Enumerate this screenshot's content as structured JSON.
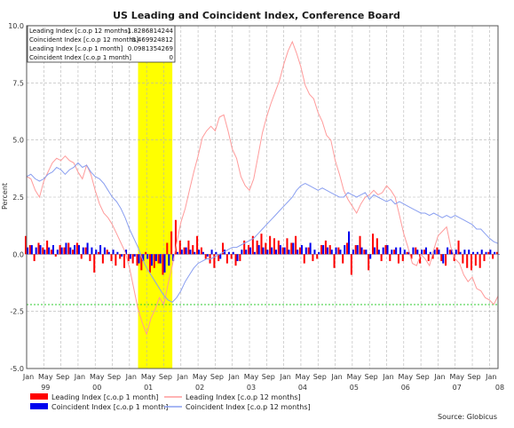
{
  "chart_data": {
    "type": "bar",
    "title": "US Leading and Coincident Index, Conference Board",
    "ylabel": "Percent",
    "ylim": [
      -5.0,
      10.0
    ],
    "ytick_labels": [
      "10.0",
      "7.5",
      "5.0",
      "2.5",
      "0.0",
      "-2.5",
      "-5.0"
    ],
    "x_month_labels": [
      "Jan",
      "May",
      "Sep",
      "Jan",
      "May",
      "Sep",
      "Jan",
      "May",
      "Sep",
      "Jan",
      "May",
      "Sep",
      "Jan",
      "May",
      "Sep",
      "Jan",
      "May",
      "Sep",
      "Jan",
      "May",
      "Sep",
      "Jan",
      "May",
      "Sep",
      "Jan",
      "May",
      "Sep",
      "Jan",
      "May",
      "Sep",
      "Jan"
    ],
    "x_year_labels": [
      "99",
      "00",
      "01",
      "02",
      "03",
      "04",
      "05",
      "06",
      "07",
      "08"
    ],
    "x_start": "1999-01",
    "x_end": "2008-03",
    "recession": {
      "start": "2001-03",
      "end": "2001-11",
      "color": "#ffff00"
    },
    "reference_line": {
      "value": -2.2,
      "color": "#33cc33"
    },
    "grid": true,
    "info_box": {
      "rows": [
        {
          "label": "Leading Index [c.o.p 12 months]",
          "value": "-1.8286814244"
        },
        {
          "label": "Coincident Index [c.o.p 12 months]",
          "value": "0.469924812"
        },
        {
          "label": "Leading Index [c.o.p 1 month]",
          "value": "0.0981354269"
        },
        {
          "label": "Coincident Index [c.o.p 1 month]",
          "value": "0"
        }
      ]
    },
    "series": [
      {
        "name": "Leading Index [c.o.p 1 month]",
        "kind": "bar",
        "color": "#ff0000",
        "x": [
          "1999-01",
          "1999-02",
          "1999-03",
          "1999-04",
          "1999-05",
          "1999-06",
          "1999-07",
          "1999-08",
          "1999-09",
          "1999-10",
          "1999-11",
          "1999-12",
          "2000-01",
          "2000-02",
          "2000-03",
          "2000-04",
          "2000-05",
          "2000-06",
          "2000-07",
          "2000-08",
          "2000-09",
          "2000-10",
          "2000-11",
          "2000-12",
          "2001-01",
          "2001-02",
          "2001-03",
          "2001-04",
          "2001-05",
          "2001-06",
          "2001-07",
          "2001-08",
          "2001-09",
          "2001-10",
          "2001-11",
          "2001-12",
          "2002-01",
          "2002-02",
          "2002-03",
          "2002-04",
          "2002-05",
          "2002-06",
          "2002-07",
          "2002-08",
          "2002-09",
          "2002-10",
          "2002-11",
          "2002-12",
          "2003-01",
          "2003-02",
          "2003-03",
          "2003-04",
          "2003-05",
          "2003-06",
          "2003-07",
          "2003-08",
          "2003-09",
          "2003-10",
          "2003-11",
          "2003-12",
          "2004-01",
          "2004-02",
          "2004-03",
          "2004-04",
          "2004-05",
          "2004-06",
          "2004-07",
          "2004-08",
          "2004-09",
          "2004-10",
          "2004-11",
          "2004-12",
          "2005-01",
          "2005-02",
          "2005-03",
          "2005-04",
          "2005-05",
          "2005-06",
          "2005-07",
          "2005-08",
          "2005-09",
          "2005-10",
          "2005-11",
          "2005-12",
          "2006-01",
          "2006-02",
          "2006-03",
          "2006-04",
          "2006-05",
          "2006-06",
          "2006-07",
          "2006-08",
          "2006-09",
          "2006-10",
          "2006-11",
          "2006-12",
          "2007-01",
          "2007-02",
          "2007-03",
          "2007-04",
          "2007-05",
          "2007-06",
          "2007-07",
          "2007-08",
          "2007-09",
          "2007-10",
          "2007-11",
          "2007-12",
          "2008-01",
          "2008-02",
          "2008-03"
        ],
        "values": [
          0.8,
          0.4,
          -0.3,
          0.5,
          0.3,
          0.6,
          0.2,
          -0.1,
          0.4,
          0.3,
          0.5,
          0.2,
          0.5,
          -0.2,
          0.3,
          -0.3,
          -0.8,
          0.1,
          -0.4,
          0.2,
          -0.3,
          -0.5,
          -0.2,
          -0.6,
          -0.3,
          -0.4,
          -0.5,
          -0.7,
          0.1,
          -0.8,
          -0.6,
          -0.4,
          -0.9,
          0.5,
          1.0,
          1.5,
          0.6,
          0.3,
          0.6,
          0.4,
          0.8,
          0.3,
          -0.2,
          -0.4,
          -0.6,
          -0.3,
          0.5,
          -0.4,
          -0.2,
          -0.5,
          -0.3,
          0.6,
          0.4,
          0.8,
          0.6,
          0.9,
          0.5,
          0.8,
          0.7,
          0.6,
          0.3,
          0.7,
          0.5,
          0.8,
          0.3,
          -0.4,
          0.3,
          -0.3,
          -0.2,
          0.4,
          0.6,
          0.4,
          -0.6,
          0.3,
          -0.4,
          0.5,
          -0.9,
          0.4,
          0.8,
          0.2,
          -0.7,
          0.9,
          0.7,
          -0.3,
          0.4,
          -0.3,
          0.2,
          -0.4,
          -0.3,
          0.1,
          -0.2,
          0.3,
          -0.4,
          0.2,
          -0.3,
          -0.2,
          0.3,
          -0.3,
          -0.5,
          0.2,
          -0.3,
          0.6,
          -0.4,
          -0.6,
          -0.7,
          -0.5,
          -0.6,
          -0.3,
          0.1,
          -0.2,
          0.1
        ]
      },
      {
        "name": "Coincident Index [c.o.p 1 month]",
        "kind": "bar",
        "color": "#0000ee",
        "x": [
          "1999-01",
          "1999-02",
          "1999-03",
          "1999-04",
          "1999-05",
          "1999-06",
          "1999-07",
          "1999-08",
          "1999-09",
          "1999-10",
          "1999-11",
          "1999-12",
          "2000-01",
          "2000-02",
          "2000-03",
          "2000-04",
          "2000-05",
          "2000-06",
          "2000-07",
          "2000-08",
          "2000-09",
          "2000-10",
          "2000-11",
          "2000-12",
          "2001-01",
          "2001-02",
          "2001-03",
          "2001-04",
          "2001-05",
          "2001-06",
          "2001-07",
          "2001-08",
          "2001-09",
          "2001-10",
          "2001-11",
          "2001-12",
          "2002-01",
          "2002-02",
          "2002-03",
          "2002-04",
          "2002-05",
          "2002-06",
          "2002-07",
          "2002-08",
          "2002-09",
          "2002-10",
          "2002-11",
          "2002-12",
          "2003-01",
          "2003-02",
          "2003-03",
          "2003-04",
          "2003-05",
          "2003-06",
          "2003-07",
          "2003-08",
          "2003-09",
          "2003-10",
          "2003-11",
          "2003-12",
          "2004-01",
          "2004-02",
          "2004-03",
          "2004-04",
          "2004-05",
          "2004-06",
          "2004-07",
          "2004-08",
          "2004-09",
          "2004-10",
          "2004-11",
          "2004-12",
          "2005-01",
          "2005-02",
          "2005-03",
          "2005-04",
          "2005-05",
          "2005-06",
          "2005-07",
          "2005-08",
          "2005-09",
          "2005-10",
          "2005-11",
          "2005-12",
          "2006-01",
          "2006-02",
          "2006-03",
          "2006-04",
          "2006-05",
          "2006-06",
          "2006-07",
          "2006-08",
          "2006-09",
          "2006-10",
          "2006-11",
          "2006-12",
          "2007-01",
          "2007-02",
          "2007-03",
          "2007-04",
          "2007-05",
          "2007-06",
          "2007-07",
          "2007-08",
          "2007-09",
          "2007-10",
          "2007-11",
          "2007-12",
          "2008-01",
          "2008-02",
          "2008-03"
        ],
        "values": [
          0.3,
          0.4,
          0.3,
          0.4,
          0.2,
          0.3,
          0.4,
          0.2,
          0.3,
          0.5,
          0.3,
          0.4,
          0.4,
          0.3,
          0.5,
          0.3,
          0.2,
          0.4,
          0.3,
          0.1,
          0.2,
          0.1,
          -0.1,
          0.2,
          -0.2,
          -0.1,
          -0.4,
          -0.3,
          -0.2,
          -0.5,
          -0.3,
          -0.4,
          -0.8,
          -0.5,
          -0.3,
          0.1,
          0.2,
          0.3,
          0.2,
          0.1,
          0.2,
          0.1,
          -0.1,
          0.2,
          0.1,
          -0.2,
          0.2,
          0.1,
          0.1,
          -0.3,
          0.2,
          0.2,
          0.3,
          0.1,
          0.4,
          0.3,
          0.2,
          0.3,
          0.2,
          0.4,
          0.3,
          0.2,
          0.5,
          0.2,
          0.4,
          0.3,
          0.5,
          0.2,
          0.1,
          0.4,
          0.3,
          0.2,
          0.3,
          0.2,
          0.4,
          1.0,
          0.2,
          0.4,
          0.3,
          0.2,
          -0.2,
          0.3,
          0.2,
          0.3,
          0.4,
          0.2,
          0.3,
          0.3,
          0.2,
          0.1,
          0.3,
          0.2,
          0.2,
          0.3,
          0.1,
          0.2,
          0.2,
          -0.4,
          0.3,
          0.2,
          0.2,
          0.1,
          0.2,
          0.2,
          0.1,
          0.1,
          0.2,
          0.1,
          0.2,
          0.1,
          0.0
        ]
      },
      {
        "name": "Leading Index [c.o.p 12 months]",
        "kind": "line",
        "color": "#ff9b9b",
        "x": [
          "1999-01",
          "1999-02",
          "1999-03",
          "1999-04",
          "1999-05",
          "1999-06",
          "1999-07",
          "1999-08",
          "1999-09",
          "1999-10",
          "1999-11",
          "1999-12",
          "2000-01",
          "2000-02",
          "2000-03",
          "2000-04",
          "2000-05",
          "2000-06",
          "2000-07",
          "2000-08",
          "2000-09",
          "2000-10",
          "2000-11",
          "2000-12",
          "2001-01",
          "2001-02",
          "2001-03",
          "2001-04",
          "2001-05",
          "2001-06",
          "2001-07",
          "2001-08",
          "2001-09",
          "2001-10",
          "2001-11",
          "2001-12",
          "2002-01",
          "2002-02",
          "2002-03",
          "2002-04",
          "2002-05",
          "2002-06",
          "2002-07",
          "2002-08",
          "2002-09",
          "2002-10",
          "2002-11",
          "2002-12",
          "2003-01",
          "2003-02",
          "2003-03",
          "2003-04",
          "2003-05",
          "2003-06",
          "2003-07",
          "2003-08",
          "2003-09",
          "2003-10",
          "2003-11",
          "2003-12",
          "2004-01",
          "2004-02",
          "2004-03",
          "2004-04",
          "2004-05",
          "2004-06",
          "2004-07",
          "2004-08",
          "2004-09",
          "2004-10",
          "2004-11",
          "2004-12",
          "2005-01",
          "2005-02",
          "2005-03",
          "2005-04",
          "2005-05",
          "2005-06",
          "2005-07",
          "2005-08",
          "2005-09",
          "2005-10",
          "2005-11",
          "2005-12",
          "2006-01",
          "2006-02",
          "2006-03",
          "2006-04",
          "2006-05",
          "2006-06",
          "2006-07",
          "2006-08",
          "2006-09",
          "2006-10",
          "2006-11",
          "2006-12",
          "2007-01",
          "2007-02",
          "2007-03",
          "2007-04",
          "2007-05",
          "2007-06",
          "2007-07",
          "2007-08",
          "2007-09",
          "2007-10",
          "2007-11",
          "2007-12",
          "2008-01",
          "2008-02",
          "2008-03"
        ],
        "values": [
          3.4,
          3.3,
          2.8,
          2.5,
          3.2,
          3.6,
          4.0,
          4.2,
          4.1,
          4.3,
          4.1,
          4.0,
          3.6,
          3.3,
          3.9,
          3.5,
          2.8,
          2.2,
          1.8,
          1.6,
          1.3,
          0.9,
          0.5,
          0.1,
          -0.6,
          -1.5,
          -2.4,
          -3.0,
          -3.5,
          -2.8,
          -2.4,
          -1.9,
          -2.2,
          -1.3,
          -0.5,
          0.5,
          1.4,
          2.0,
          2.8,
          3.6,
          4.3,
          5.1,
          5.4,
          5.6,
          5.4,
          6.0,
          6.1,
          5.4,
          4.6,
          4.2,
          3.4,
          3.0,
          2.8,
          3.3,
          4.3,
          5.3,
          6.0,
          6.6,
          7.1,
          7.6,
          8.3,
          8.9,
          9.3,
          8.8,
          8.2,
          7.4,
          7.0,
          6.8,
          6.2,
          5.8,
          5.2,
          5.0,
          4.1,
          3.5,
          2.8,
          2.4,
          2.1,
          1.8,
          2.2,
          2.5,
          2.6,
          2.8,
          2.6,
          2.7,
          3.0,
          2.8,
          2.5,
          1.7,
          0.9,
          0.3,
          -0.4,
          -0.5,
          0.0,
          -0.2,
          -0.5,
          0.2,
          0.8,
          1.0,
          1.2,
          0.3,
          -0.2,
          -0.4,
          -0.9,
          -1.2,
          -1.0,
          -1.5,
          -1.6,
          -1.9,
          -2.0,
          -2.2,
          -1.83
        ]
      },
      {
        "name": "Coincident Index [c.o.p 12 months]",
        "kind": "line",
        "color": "#8a9ff0",
        "x": [
          "1999-01",
          "1999-02",
          "1999-03",
          "1999-04",
          "1999-05",
          "1999-06",
          "1999-07",
          "1999-08",
          "1999-09",
          "1999-10",
          "1999-11",
          "1999-12",
          "2000-01",
          "2000-02",
          "2000-03",
          "2000-04",
          "2000-05",
          "2000-06",
          "2000-07",
          "2000-08",
          "2000-09",
          "2000-10",
          "2000-11",
          "2000-12",
          "2001-01",
          "2001-02",
          "2001-03",
          "2001-04",
          "2001-05",
          "2001-06",
          "2001-07",
          "2001-08",
          "2001-09",
          "2001-10",
          "2001-11",
          "2001-12",
          "2002-01",
          "2002-02",
          "2002-03",
          "2002-04",
          "2002-05",
          "2002-06",
          "2002-07",
          "2002-08",
          "2002-09",
          "2002-10",
          "2002-11",
          "2002-12",
          "2003-01",
          "2003-02",
          "2003-03",
          "2003-04",
          "2003-05",
          "2003-06",
          "2003-07",
          "2003-08",
          "2003-09",
          "2003-10",
          "2003-11",
          "2003-12",
          "2004-01",
          "2004-02",
          "2004-03",
          "2004-04",
          "2004-05",
          "2004-06",
          "2004-07",
          "2004-08",
          "2004-09",
          "2004-10",
          "2004-11",
          "2004-12",
          "2005-01",
          "2005-02",
          "2005-03",
          "2005-04",
          "2005-05",
          "2005-06",
          "2005-07",
          "2005-08",
          "2005-09",
          "2005-10",
          "2005-11",
          "2005-12",
          "2006-01",
          "2006-02",
          "2006-03",
          "2006-04",
          "2006-05",
          "2006-06",
          "2006-07",
          "2006-08",
          "2006-09",
          "2006-10",
          "2006-11",
          "2006-12",
          "2007-01",
          "2007-02",
          "2007-03",
          "2007-04",
          "2007-05",
          "2007-06",
          "2007-07",
          "2007-08",
          "2007-09",
          "2007-10",
          "2007-11",
          "2007-12",
          "2008-01",
          "2008-02",
          "2008-03"
        ],
        "values": [
          3.4,
          3.5,
          3.3,
          3.2,
          3.3,
          3.5,
          3.6,
          3.8,
          3.7,
          3.5,
          3.7,
          3.8,
          4.0,
          3.8,
          3.9,
          3.6,
          3.4,
          3.3,
          3.1,
          2.8,
          2.5,
          2.3,
          2.0,
          1.6,
          1.1,
          0.7,
          0.3,
          -0.2,
          -0.6,
          -0.9,
          -1.2,
          -1.5,
          -1.8,
          -2.0,
          -2.1,
          -1.9,
          -1.6,
          -1.2,
          -0.9,
          -0.6,
          -0.4,
          -0.3,
          -0.2,
          -0.2,
          -0.1,
          0.0,
          0.1,
          0.2,
          0.3,
          0.3,
          0.4,
          0.5,
          0.6,
          0.7,
          0.9,
          1.1,
          1.3,
          1.5,
          1.7,
          1.9,
          2.1,
          2.3,
          2.5,
          2.8,
          3.0,
          3.1,
          3.0,
          2.9,
          2.8,
          2.9,
          2.8,
          2.7,
          2.6,
          2.5,
          2.5,
          2.7,
          2.6,
          2.5,
          2.6,
          2.7,
          2.4,
          2.6,
          2.5,
          2.4,
          2.3,
          2.4,
          2.2,
          2.3,
          2.2,
          2.1,
          2.0,
          1.9,
          1.8,
          1.8,
          1.7,
          1.8,
          1.7,
          1.6,
          1.7,
          1.6,
          1.7,
          1.6,
          1.5,
          1.4,
          1.3,
          1.1,
          1.1,
          0.9,
          0.7,
          0.55,
          0.47
        ]
      }
    ],
    "legend": {
      "placement": "bottom",
      "items": [
        {
          "label": "Leading Index [c.o.p 1 month]",
          "kind": "bar",
          "color": "#ff0000"
        },
        {
          "label": "Coincident Index [c.o.p 1 month]",
          "kind": "bar",
          "color": "#0000ee"
        },
        {
          "label": "Leading Index [c.o.p 12 months]",
          "kind": "line",
          "color": "#ff9b9b"
        },
        {
          "label": "Coincident Index [c.o.p 12 months]",
          "kind": "line",
          "color": "#8a9ff0"
        }
      ]
    },
    "source": "Source: Globicus"
  }
}
